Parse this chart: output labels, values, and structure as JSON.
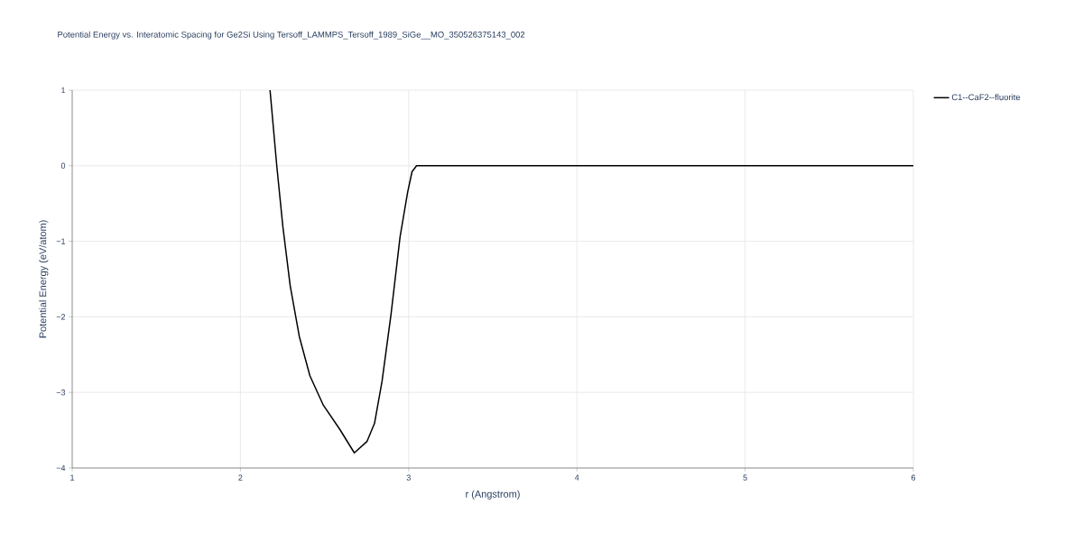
{
  "chart_data": {
    "type": "line",
    "title": "Potential Energy vs. Interatomic Spacing for Ge2Si Using Tersoff_LAMMPS_Tersoff_1989_SiGe__MO_350526375143_002",
    "xlabel": "r (Angstrom)",
    "ylabel": "Potential Energy (eV/atom)",
    "series": [
      {
        "name": "C1--CaF2--fluorite",
        "color": "#000000",
        "x": [
          2.176,
          2.216,
          2.252,
          2.296,
          2.35,
          2.413,
          2.493,
          2.591,
          2.677,
          2.752,
          2.797,
          2.842,
          2.895,
          2.949,
          2.994,
          3.02,
          3.047,
          3.5,
          4.0,
          4.5,
          5.0,
          5.5,
          6.0
        ],
        "values": [
          1.0,
          0.0,
          -0.8,
          -1.59,
          -2.26,
          -2.78,
          -3.17,
          -3.49,
          -3.8,
          -3.65,
          -3.41,
          -2.85,
          -1.97,
          -0.94,
          -0.35,
          -0.08,
          0.0,
          0.0,
          0.0,
          0.0,
          0.0,
          0.0,
          0.0
        ]
      }
    ],
    "xlim": [
      1,
      6
    ],
    "ylim": [
      -4,
      1
    ],
    "xticks": [
      1,
      2,
      3,
      4,
      5,
      6
    ],
    "yticks": [
      {
        "value": -4,
        "label": "−4"
      },
      {
        "value": -3,
        "label": "−3"
      },
      {
        "value": -2,
        "label": "−2"
      },
      {
        "value": -1,
        "label": "−1"
      },
      0,
      1
    ],
    "grid": true,
    "legend": "top right",
    "marker": "none",
    "line_style": "solid"
  }
}
